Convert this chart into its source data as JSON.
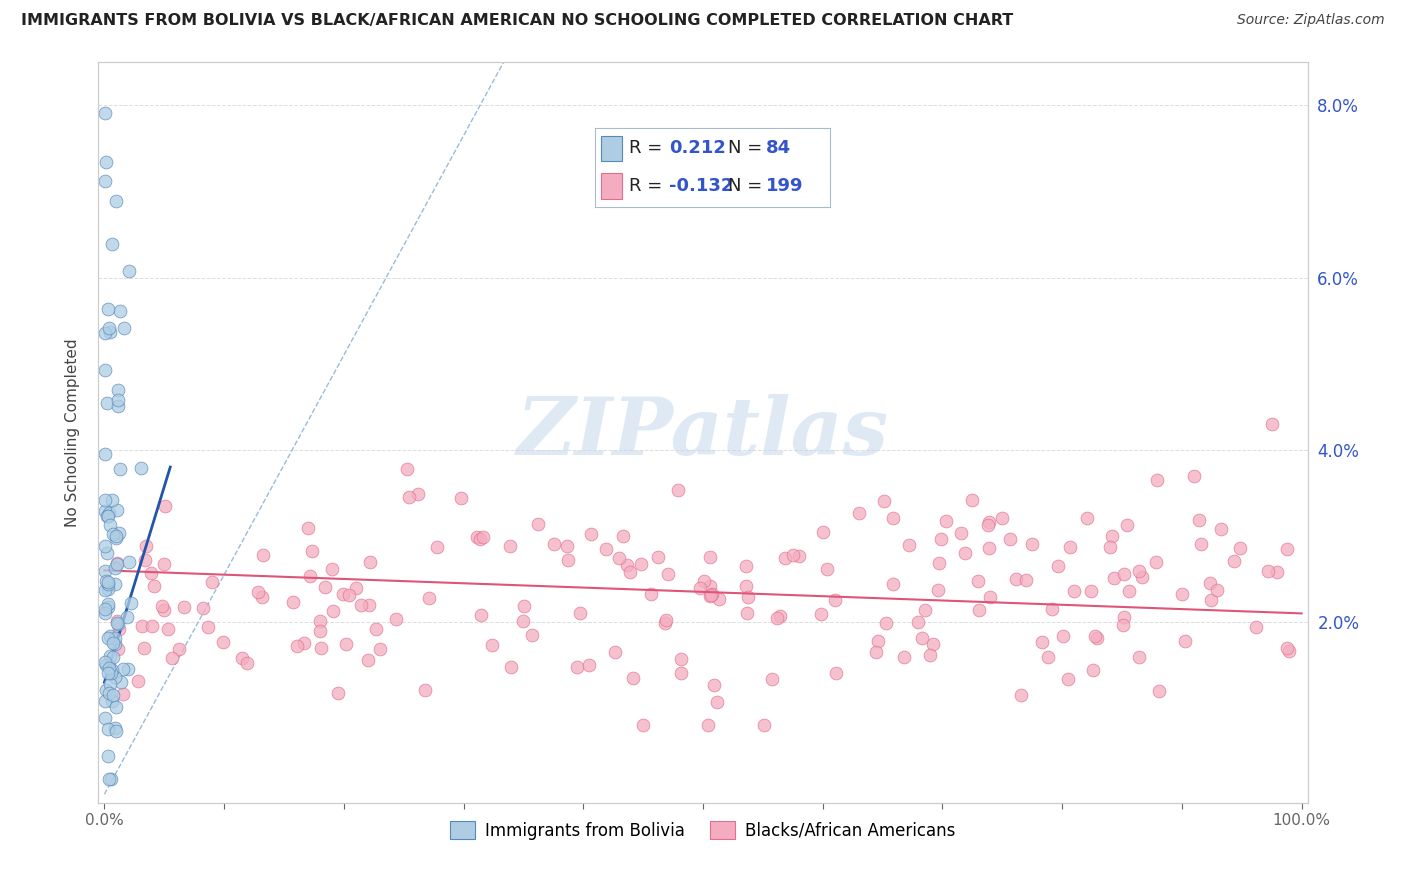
{
  "title": "IMMIGRANTS FROM BOLIVIA VS BLACK/AFRICAN AMERICAN NO SCHOOLING COMPLETED CORRELATION CHART",
  "source": "Source: ZipAtlas.com",
  "ylabel": "No Schooling Completed",
  "xlim": [
    0,
    1.0
  ],
  "ylim": [
    0,
    0.085
  ],
  "yticks": [
    0.0,
    0.02,
    0.04,
    0.06,
    0.08
  ],
  "right_ytick_labels": [
    "",
    "2.0%",
    "4.0%",
    "6.0%",
    "8.0%"
  ],
  "xtick_positions": [
    0.0,
    0.1,
    0.2,
    0.3,
    0.4,
    0.5,
    0.6,
    0.7,
    0.8,
    0.9,
    1.0
  ],
  "blue_color": "#aecde3",
  "blue_fill": "#aecde3",
  "pink_color": "#f4adc0",
  "pink_fill": "#f4adc0",
  "blue_edge_color": "#5588bb",
  "pink_edge_color": "#e07090",
  "blue_line_color": "#2255aa",
  "pink_line_color": "#dd5577",
  "dashed_line_color": "#99bbdd",
  "tick_color": "#666666",
  "label_color": "#3355cc",
  "title_color": "#222222",
  "legend_blue_r": "0.212",
  "legend_blue_n": "84",
  "legend_pink_r": "-0.132",
  "legend_pink_n": "199",
  "legend_label_blue": "Immigrants from Bolivia",
  "legend_label_pink": "Blacks/African Americans",
  "watermark": "ZIPatlas",
  "grid_color": "#dddddd"
}
